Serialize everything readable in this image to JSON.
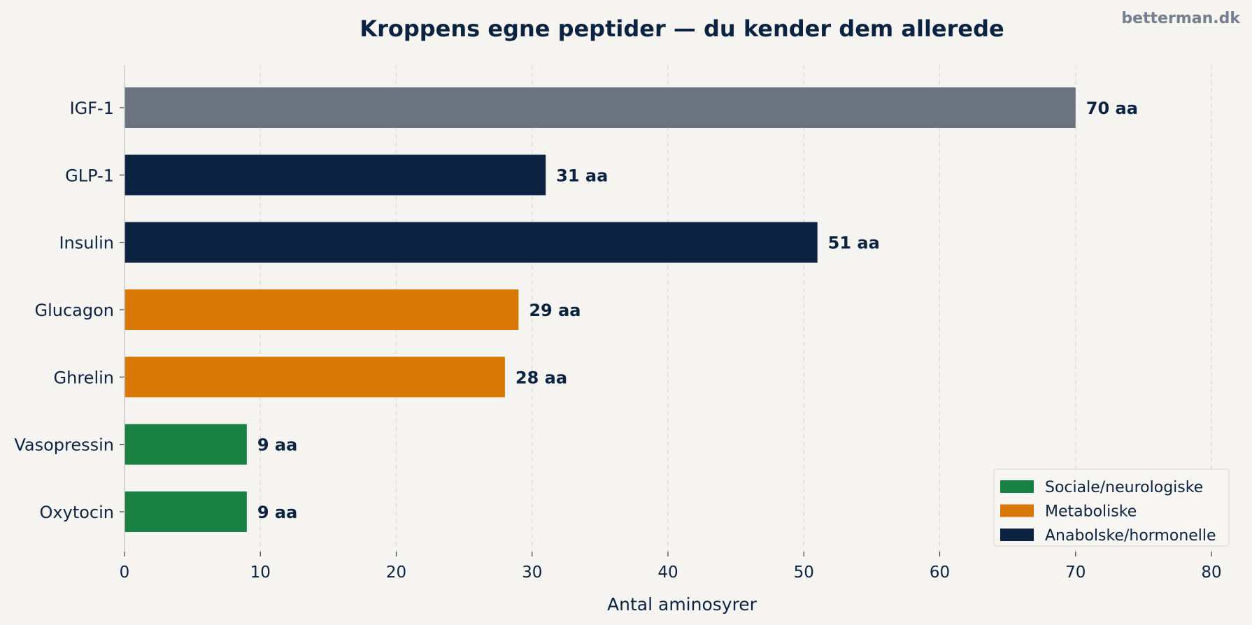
{
  "watermark": "betterman.dk",
  "chart_data": {
    "type": "bar",
    "orientation": "horizontal",
    "title": "Kroppens egne peptider — du kender dem allerede",
    "xlabel": "Antal aminosyrer",
    "ylabel": "",
    "xlim": [
      0,
      80
    ],
    "xticks": [
      0,
      10,
      20,
      30,
      40,
      50,
      60,
      70,
      80
    ],
    "grid": "vertical dashed",
    "legend_position": "bottom-right",
    "categories": [
      "IGF-1",
      "GLP-1",
      "Insulin",
      "Glucagon",
      "Ghrelin",
      "Vasopressin",
      "Oxytocin"
    ],
    "values": [
      70,
      31,
      51,
      29,
      28,
      9,
      9
    ],
    "value_labels": [
      "70 aa",
      "31 aa",
      "51 aa",
      "29 aa",
      "28 aa",
      "9 aa",
      "9 aa"
    ],
    "bar_colors": [
      "#6b7280",
      "#0b2340",
      "#0b2340",
      "#d97706",
      "#d97706",
      "#188040",
      "#188040"
    ],
    "legend": [
      {
        "label": "Sociale/neurologiske",
        "color": "#188040"
      },
      {
        "label": "Metaboliske",
        "color": "#d97706"
      },
      {
        "label": "Anabolske/hormonelle",
        "color": "#0b2340"
      }
    ]
  }
}
